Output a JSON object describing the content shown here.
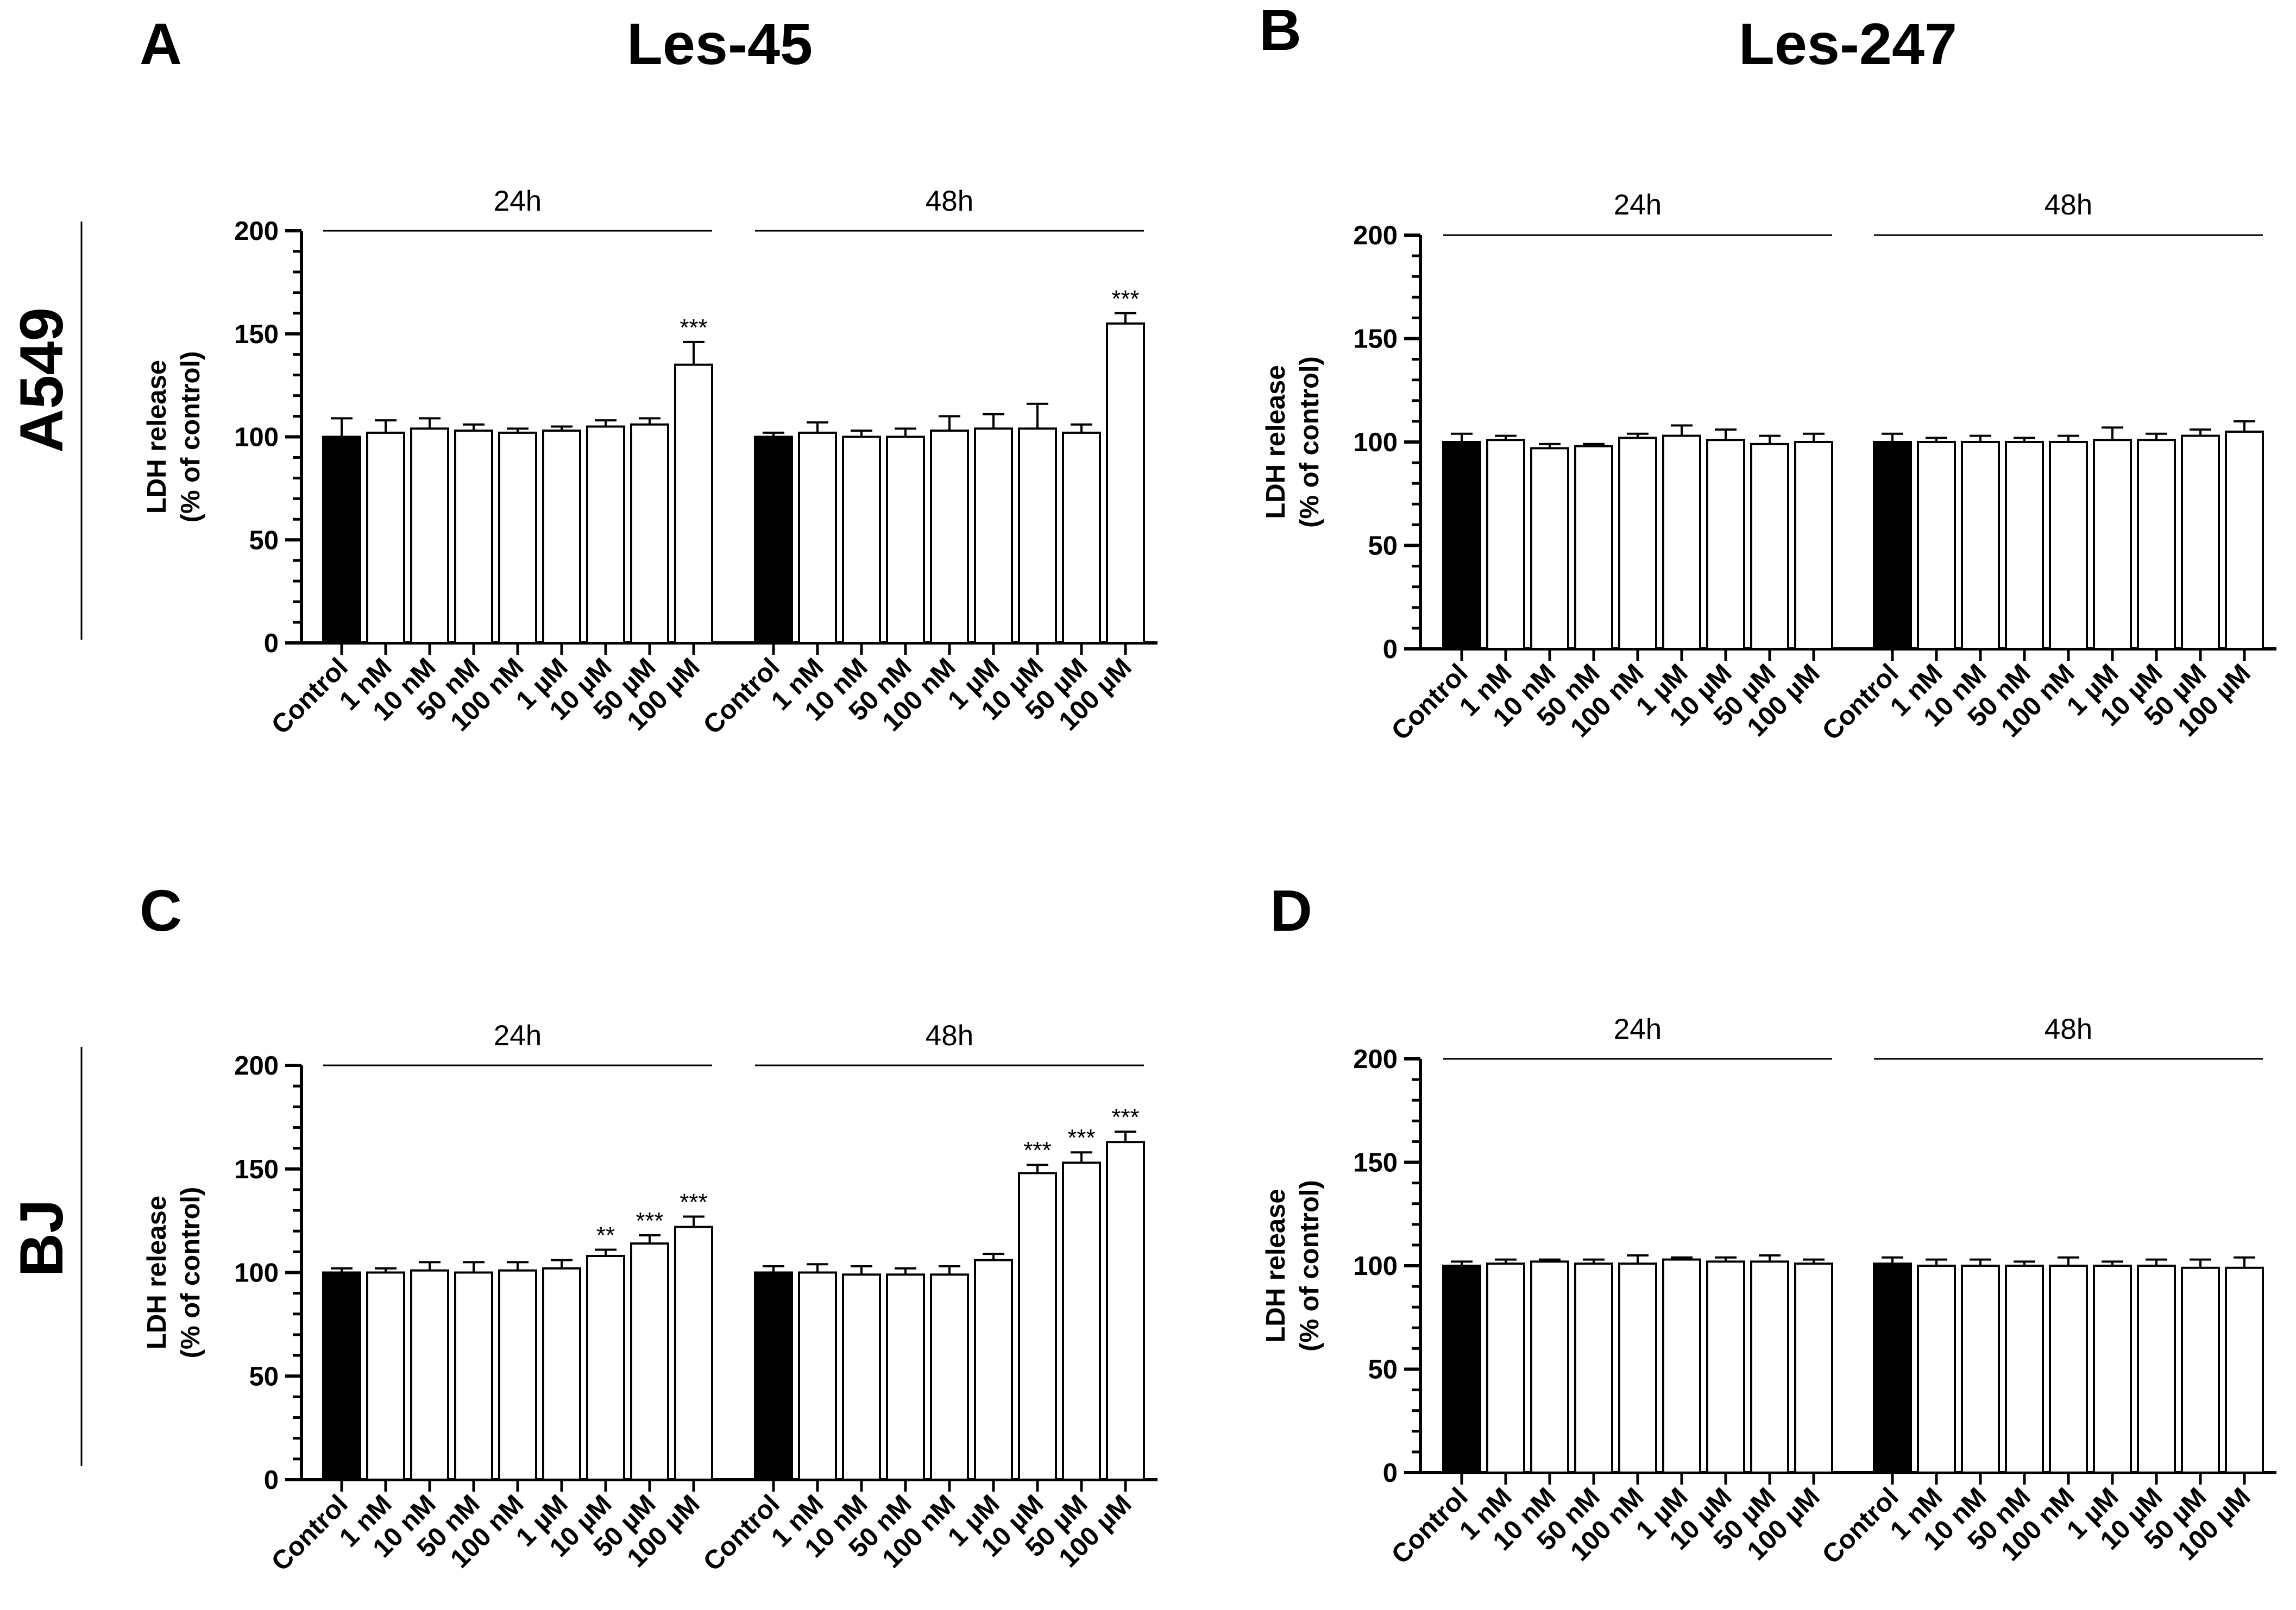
{
  "figure": {
    "compound_titles": [
      "Les-45",
      "Les-247"
    ],
    "row_labels": [
      "A549",
      "BJ"
    ]
  },
  "chart_data": [
    {
      "panel": "A",
      "type": "bar",
      "compound": "Les-45",
      "cell_line": "A549",
      "ylabel": [
        "LDH release",
        "(% of control)"
      ],
      "ylim": [
        0,
        200
      ],
      "yticks": [
        0,
        50,
        100,
        150,
        200
      ],
      "categories": [
        "Control",
        "1 nM",
        "10 nM",
        "50 nM",
        "100 nM",
        "1 µM",
        "10 µM",
        "50 µM",
        "100 µM"
      ],
      "groups": [
        {
          "label": "24h",
          "values": [
            100,
            102,
            104,
            103,
            102,
            103,
            105,
            106,
            135
          ],
          "errors": [
            9,
            6,
            5,
            3,
            2,
            2,
            3,
            3,
            11
          ],
          "significance": [
            "",
            "",
            "",
            "",
            "",
            "",
            "",
            "",
            "***"
          ]
        },
        {
          "label": "48h",
          "values": [
            100,
            102,
            100,
            100,
            103,
            104,
            104,
            102,
            155
          ],
          "errors": [
            2,
            5,
            3,
            4,
            7,
            7,
            12,
            4,
            5
          ],
          "significance": [
            "",
            "",
            "",
            "",
            "",
            "",
            "",
            "",
            "***"
          ]
        }
      ],
      "control_color": "#000000",
      "treated_color": "#ffffff"
    },
    {
      "panel": "B",
      "type": "bar",
      "compound": "Les-247",
      "cell_line": "A549",
      "ylabel": [
        "LDH release",
        "(% of control)"
      ],
      "ylim": [
        0,
        200
      ],
      "yticks": [
        0,
        50,
        100,
        150,
        200
      ],
      "categories": [
        "Control",
        "1 nM",
        "10 nM",
        "50 nM",
        "100 nM",
        "1 µM",
        "10 µM",
        "50 µM",
        "100 µM"
      ],
      "groups": [
        {
          "label": "24h",
          "values": [
            100,
            101,
            97,
            98,
            102,
            103,
            101,
            99,
            100
          ],
          "errors": [
            4,
            2,
            2,
            1,
            2,
            5,
            5,
            4,
            4
          ],
          "significance": [
            "",
            "",
            "",
            "",
            "",
            "",
            "",
            "",
            ""
          ]
        },
        {
          "label": "48h",
          "values": [
            100,
            100,
            100,
            100,
            100,
            101,
            101,
            103,
            105
          ],
          "errors": [
            4,
            2,
            3,
            2,
            3,
            6,
            3,
            3,
            5
          ],
          "significance": [
            "",
            "",
            "",
            "",
            "",
            "",
            "",
            "",
            ""
          ]
        }
      ],
      "control_color": "#000000",
      "treated_color": "#ffffff"
    },
    {
      "panel": "C",
      "type": "bar",
      "compound": "Les-45",
      "cell_line": "BJ",
      "ylabel": [
        "LDH release",
        "(% of control)"
      ],
      "ylim": [
        0,
        200
      ],
      "yticks": [
        0,
        50,
        100,
        150,
        200
      ],
      "categories": [
        "Control",
        "1 nM",
        "10 nM",
        "50 nM",
        "100 nM",
        "1 µM",
        "10 µM",
        "50 µM",
        "100 µM"
      ],
      "groups": [
        {
          "label": "24h",
          "values": [
            100,
            100,
            101,
            100,
            101,
            102,
            108,
            114,
            122
          ],
          "errors": [
            2,
            2,
            4,
            5,
            4,
            4,
            3,
            4,
            5
          ],
          "significance": [
            "",
            "",
            "",
            "",
            "",
            "",
            "**",
            "***",
            "***"
          ]
        },
        {
          "label": "48h",
          "values": [
            100,
            100,
            99,
            99,
            99,
            106,
            148,
            153,
            163
          ],
          "errors": [
            3,
            4,
            4,
            3,
            4,
            3,
            4,
            5,
            5
          ],
          "significance": [
            "",
            "",
            "",
            "",
            "",
            "",
            "***",
            "***",
            "***"
          ]
        }
      ],
      "control_color": "#000000",
      "treated_color": "#ffffff"
    },
    {
      "panel": "D",
      "type": "bar",
      "compound": "Les-247",
      "cell_line": "BJ",
      "ylabel": [
        "LDH release",
        "(% of control)"
      ],
      "ylim": [
        0,
        200
      ],
      "yticks": [
        0,
        50,
        100,
        150,
        200
      ],
      "categories": [
        "Control",
        "1 nM",
        "10 nM",
        "50 nM",
        "100 nM",
        "1 µM",
        "10 µM",
        "50 µM",
        "100 µM"
      ],
      "groups": [
        {
          "label": "24h",
          "values": [
            100,
            101,
            102,
            101,
            101,
            103,
            102,
            102,
            101
          ],
          "errors": [
            2,
            2,
            1,
            2,
            4,
            1,
            2,
            3,
            2
          ],
          "significance": [
            "",
            "",
            "",
            "",
            "",
            "",
            "",
            "",
            ""
          ]
        },
        {
          "label": "48h",
          "values": [
            101,
            100,
            100,
            100,
            100,
            100,
            100,
            99,
            99
          ],
          "errors": [
            3,
            3,
            3,
            2,
            4,
            2,
            3,
            4,
            5
          ],
          "significance": [
            "",
            "",
            "",
            "",
            "",
            "",
            "",
            "",
            ""
          ]
        }
      ],
      "control_color": "#000000",
      "treated_color": "#ffffff"
    }
  ]
}
